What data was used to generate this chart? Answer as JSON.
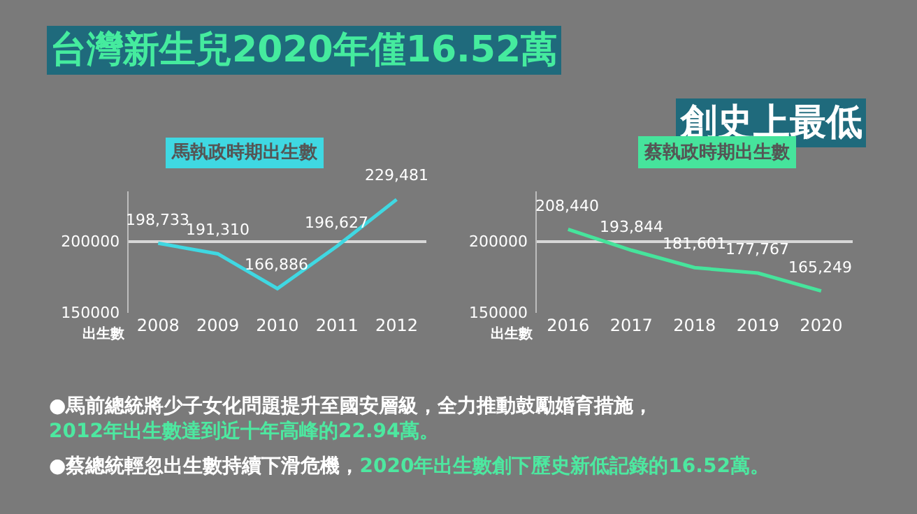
{
  "chart_data": [
    {
      "type": "other",
      "title": "台灣新生兒2020年僅16.52萬",
      "subtitle": "創史上最低",
      "annotations": [
        "●馬前總統將少子女化問題提升至國安層級，全力推動鼓勵婚育措施，",
        "2012年出生數達到近十年高峰的22.94萬。",
        "●蔡總統輕忽出生數持續下滑危機，",
        "2020年出生數創下歷史新低記錄的16.52萬。"
      ]
    },
    {
      "type": "line",
      "title": "馬執政時期出生數",
      "ylabel": "出生數",
      "categories": [
        "2008",
        "2009",
        "2010",
        "2011",
        "2012"
      ],
      "series": [
        {
          "color": "#3fd8e2",
          "values": [
            198733,
            191310,
            166886,
            196627,
            229481
          ],
          "value_labels": [
            "198,733",
            "191,310",
            "166,886",
            "196,627",
            "229,481"
          ]
        }
      ],
      "ylim": [
        150000,
        235000
      ],
      "yticks": [
        150000,
        200000
      ],
      "grid": "y",
      "marker": "none",
      "line_style": "solid"
    },
    {
      "type": "line",
      "title": "蔡執政時期出生數",
      "ylabel": "出生數",
      "categories": [
        "2016",
        "2017",
        "2018",
        "2019",
        "2020"
      ],
      "series": [
        {
          "color": "#46e49c",
          "values": [
            208440,
            193844,
            181601,
            177767,
            165249
          ],
          "value_labels": [
            "208,440",
            "193,844",
            "181,601",
            "177,767",
            "165,249"
          ]
        }
      ],
      "ylim": [
        150000,
        235000
      ],
      "yticks": [
        150000,
        200000
      ],
      "grid": "y",
      "marker": "none",
      "line_style": "solid"
    }
  ]
}
